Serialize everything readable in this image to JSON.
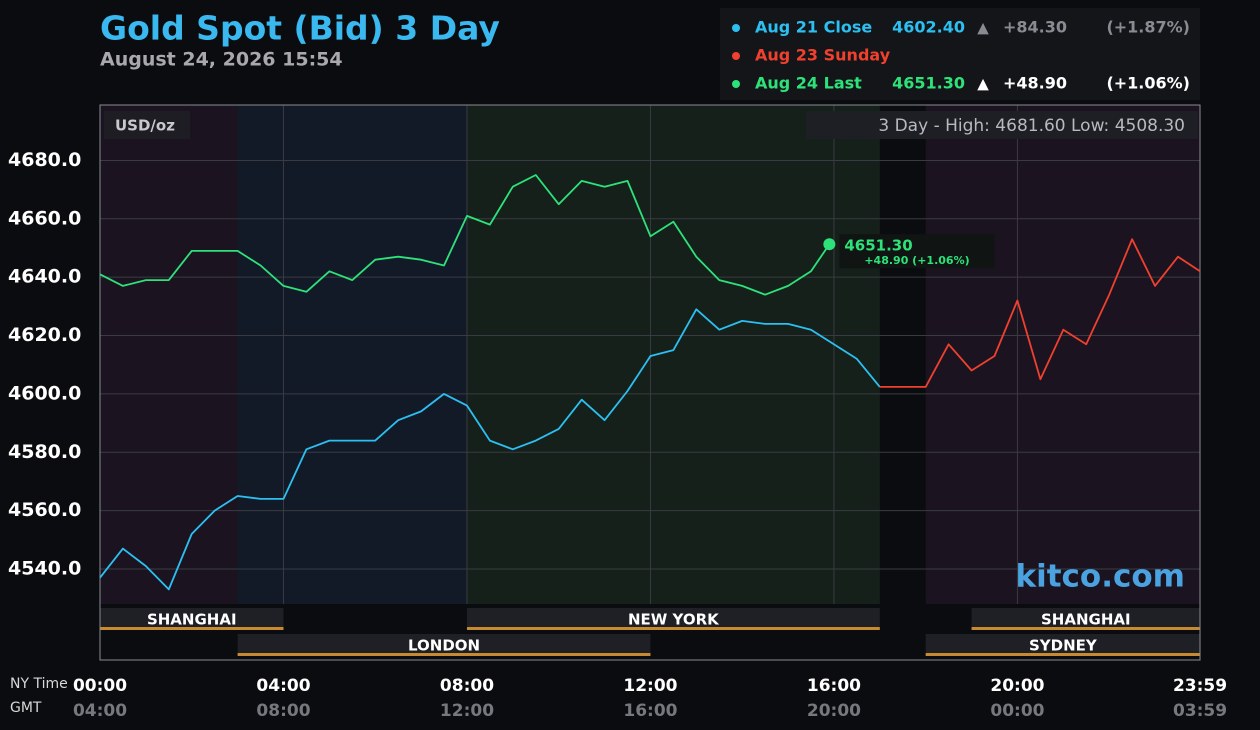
{
  "chart_data": {
    "type": "line",
    "title": "Gold Spot (Bid) 3 Day",
    "subtitle": "August 24, 2026 15:54",
    "unit_label": "USD/oz",
    "range_label": "3 Day - High: 4681.60  Low: 4508.30",
    "watermark": "kitco.com",
    "x_axis_label": "NY Time",
    "x2_axis_label": "GMT",
    "xlim": [
      0,
      23.98
    ],
    "xticks": [
      {
        "value": 0,
        "label": "00:00"
      },
      {
        "value": 4,
        "label": "04:00"
      },
      {
        "value": 8,
        "label": "08:00"
      },
      {
        "value": 12,
        "label": "12:00"
      },
      {
        "value": 16,
        "label": "16:00"
      },
      {
        "value": 20,
        "label": "20:00"
      },
      {
        "value": 23.98,
        "label": "23:59"
      }
    ],
    "x2tick_labels": [
      "04:00",
      "08:00",
      "12:00",
      "16:00",
      "20:00",
      "00:00",
      "03:59"
    ],
    "ylim": [
      4528,
      4699
    ],
    "yticks": [
      {
        "value": 4540,
        "label": "4540.0"
      },
      {
        "value": 4560,
        "label": "4560.0"
      },
      {
        "value": 4580,
        "label": "4580.0"
      },
      {
        "value": 4600,
        "label": "4600.0"
      },
      {
        "value": 4620,
        "label": "4620.0"
      },
      {
        "value": 4640,
        "label": "4640.0"
      },
      {
        "value": 4660,
        "label": "4660.0"
      },
      {
        "value": 4680,
        "label": "4680.0"
      }
    ],
    "grid": true,
    "regions": [
      {
        "start": 0,
        "end": 3,
        "color": "#1b1420"
      },
      {
        "start": 3,
        "end": 8,
        "color": "#131a27"
      },
      {
        "start": 8,
        "end": 17,
        "color": "#15201a"
      },
      {
        "start": 18,
        "end": 23.98,
        "color": "#1b1420"
      }
    ],
    "sessions": [
      {
        "name": "SHANGHAI",
        "start": 0,
        "end": 4,
        "row": 0
      },
      {
        "name": "NEW YORK",
        "start": 8,
        "end": 17,
        "row": 0
      },
      {
        "name": "SHANGHAI",
        "start": 19,
        "end": 23.98,
        "row": 0
      },
      {
        "name": "LONDON",
        "start": 3,
        "end": 12,
        "row": 1
      },
      {
        "name": "SYDNEY",
        "start": 18,
        "end": 23.98,
        "row": 1
      }
    ],
    "series": [
      {
        "name": "Aug 21 Close",
        "color": "#2cc0f2",
        "last_label": "4602.40",
        "arrow": "▲",
        "change": "+84.30",
        "pct": "(+1.87%)",
        "x": [
          0,
          0.5,
          1,
          1.5,
          2,
          2.5,
          3,
          3.5,
          4,
          4.5,
          5,
          5.5,
          6,
          6.5,
          7,
          7.5,
          8,
          8.5,
          9,
          9.5,
          10,
          10.5,
          11,
          11.5,
          12,
          12.5,
          13,
          13.5,
          14,
          14.5,
          15,
          15.5,
          16,
          16.5,
          17
        ],
        "values": [
          4537,
          4547,
          4541,
          4533,
          4552,
          4560,
          4565,
          4564,
          4564,
          4581,
          4584,
          4584,
          4584,
          4591,
          4594,
          4600,
          4596,
          4584,
          4581,
          4584,
          4588,
          4598,
          4591,
          4601,
          4613,
          4615,
          4629,
          4622,
          4625,
          4624,
          4624,
          4622,
          4617,
          4612,
          4602.4
        ]
      },
      {
        "name": "Aug 23 Sunday",
        "color": "#f0402e",
        "x": [
          17,
          18,
          18.5,
          19,
          19.5,
          20,
          20.5,
          21,
          21.5,
          22,
          22.5,
          23,
          23.5,
          23.98
        ],
        "values": [
          4602.4,
          4602.4,
          4617,
          4608,
          4613,
          4632,
          4605,
          4622,
          4617,
          4634,
          4653,
          4637,
          4647,
          4642
        ]
      },
      {
        "name": "Aug 24 Last",
        "color": "#2ee27a",
        "last_label": "4651.30",
        "arrow": "▲",
        "change": "+48.90",
        "pct": "(+1.06%)",
        "x": [
          0,
          0.5,
          1,
          1.5,
          2,
          2.5,
          3,
          3.5,
          4,
          4.5,
          5,
          5.5,
          6,
          6.5,
          7,
          7.5,
          8,
          8.5,
          9,
          9.5,
          10,
          10.5,
          11,
          11.5,
          12,
          12.5,
          13,
          13.5,
          14,
          14.5,
          15,
          15.5,
          15.9
        ],
        "values": [
          4641,
          4637,
          4639,
          4639,
          4649,
          4649,
          4649,
          4644,
          4637,
          4635,
          4642,
          4639,
          4646,
          4647,
          4646,
          4644,
          4661,
          4658,
          4671,
          4675,
          4665,
          4673,
          4671,
          4673,
          4654,
          4659,
          4647,
          4639,
          4637,
          4634,
          4637,
          4642,
          4651.3
        ],
        "marker_label": "4651.30",
        "marker_sublabel": "+48.90 (+1.06%)"
      }
    ]
  }
}
